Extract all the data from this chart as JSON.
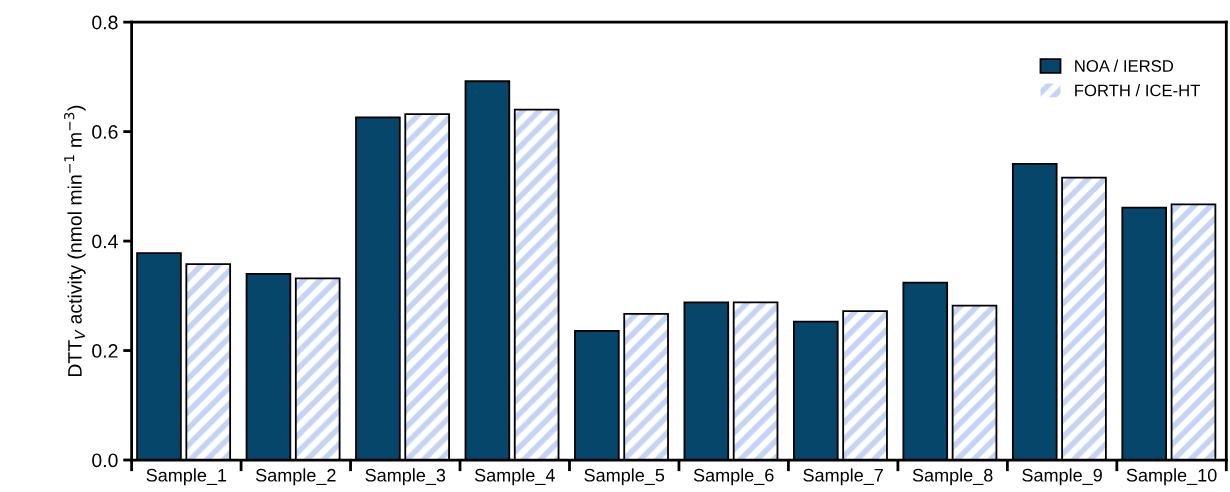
{
  "chart_data": {
    "type": "bar",
    "ylabel": "DTT$_{V}$ activity (nmol min$^{−1}$ m$^{−3}$)",
    "categories": [
      "Sample_1",
      "Sample_2",
      "Sample_3",
      "Sample_4",
      "Sample_5",
      "Sample_6",
      "Sample_7",
      "Sample_8",
      "Sample_9",
      "Sample_10"
    ],
    "series": [
      {
        "name": "NOA / IERSD",
        "color": "#05466a",
        "values": [
          0.378,
          0.34,
          0.626,
          0.692,
          0.236,
          0.288,
          0.253,
          0.324,
          0.541,
          0.461
        ]
      },
      {
        "name": "FORTH / ICE-HT",
        "color": "#c5d3f5",
        "values": [
          0.358,
          0.332,
          0.632,
          0.64,
          0.267,
          0.288,
          0.272,
          0.282,
          0.516,
          0.467
        ]
      }
    ],
    "ylim": [
      0,
      0.8
    ],
    "yticks": [
      {
        "value": 0,
        "label": "0.0"
      },
      0.2,
      0.4,
      0.6,
      0.8
    ],
    "grid": false,
    "legend": "top right"
  }
}
